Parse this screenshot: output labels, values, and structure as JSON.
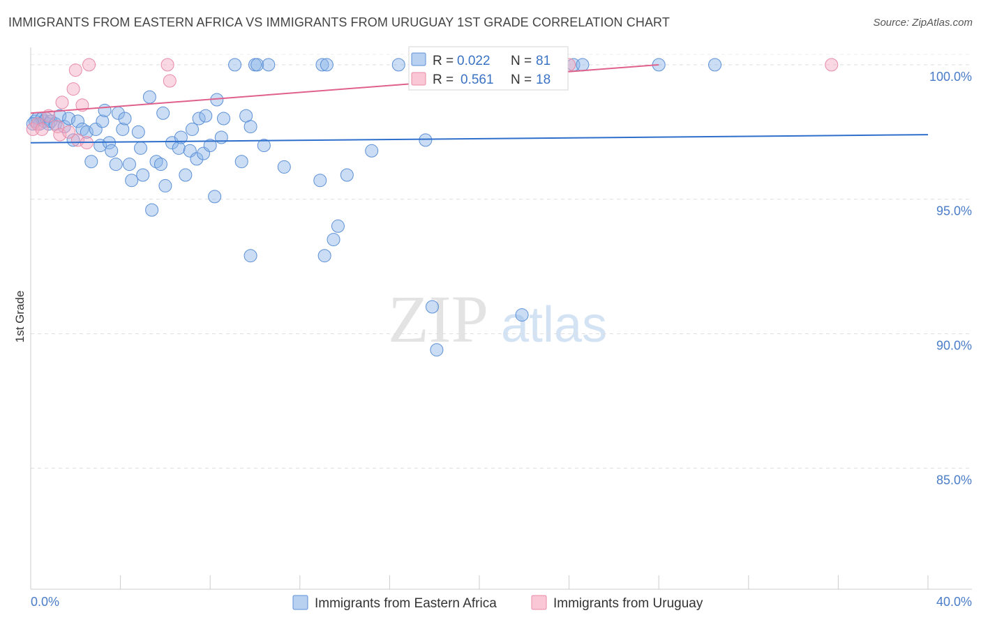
{
  "header": {
    "title": "IMMIGRANTS FROM EASTERN AFRICA VS IMMIGRANTS FROM URUGUAY 1ST GRADE CORRELATION CHART",
    "source": "Source: ZipAtlas.com"
  },
  "watermark": {
    "zip": "ZIP",
    "atlas": "atlas"
  },
  "chart_data": {
    "type": "scatter",
    "ylabel": "1st Grade",
    "xlim": [
      0,
      40
    ],
    "ylim": [
      80.5,
      100.8
    ],
    "x_tick_labels": [
      "0.0%",
      "40.0%"
    ],
    "y_ticks": [
      {
        "value": 100,
        "label": "100.0%"
      },
      {
        "value": 95,
        "label": "95.0%"
      },
      {
        "value": 90,
        "label": "90.0%"
      },
      {
        "value": 85,
        "label": "85.0%"
      }
    ],
    "grid": "horizontal-dashed",
    "legend_top": [
      {
        "r_label": "R =",
        "r_value": "0.022",
        "n_label": "N =",
        "n_value": "81",
        "color": "#8ab4e8"
      },
      {
        "r_label": "R =",
        "r_value": "0.561",
        "n_label": "N =",
        "n_value": "18",
        "color": "#f4a9c0"
      }
    ],
    "series": [
      {
        "name": "Immigrants from Eastern Africa",
        "color": "#8ab4e8",
        "stroke": "#5b8fd6",
        "trend": {
          "x": [
            0,
            40
          ],
          "y": [
            97.1,
            97.4
          ],
          "color": "#2f6fcc"
        },
        "points": [
          [
            0.2,
            97.9
          ],
          [
            0.3,
            98.0
          ],
          [
            0.4,
            97.8
          ],
          [
            0.5,
            98.0
          ],
          [
            0.6,
            97.9
          ],
          [
            0.7,
            98.0
          ],
          [
            0.8,
            97.8
          ],
          [
            0.9,
            97.9
          ],
          [
            1.1,
            97.8
          ],
          [
            1.3,
            98.1
          ],
          [
            1.5,
            97.7
          ],
          [
            1.7,
            98.0
          ],
          [
            1.9,
            97.2
          ],
          [
            2.1,
            97.9
          ],
          [
            2.3,
            97.6
          ],
          [
            2.5,
            97.5
          ],
          [
            2.7,
            96.4
          ],
          [
            2.9,
            97.6
          ],
          [
            3.1,
            97.0
          ],
          [
            3.2,
            97.9
          ],
          [
            3.3,
            98.3
          ],
          [
            3.5,
            97.1
          ],
          [
            3.6,
            96.8
          ],
          [
            3.8,
            96.3
          ],
          [
            3.9,
            98.2
          ],
          [
            4.1,
            97.6
          ],
          [
            4.2,
            98.0
          ],
          [
            4.4,
            96.3
          ],
          [
            4.5,
            95.7
          ],
          [
            4.8,
            97.5
          ],
          [
            4.9,
            96.9
          ],
          [
            5.0,
            95.9
          ],
          [
            5.3,
            98.8
          ],
          [
            5.4,
            94.6
          ],
          [
            5.6,
            96.4
          ],
          [
            5.8,
            96.3
          ],
          [
            5.9,
            98.2
          ],
          [
            6.0,
            95.5
          ],
          [
            6.3,
            97.1
          ],
          [
            6.6,
            96.9
          ],
          [
            6.7,
            97.3
          ],
          [
            6.9,
            95.9
          ],
          [
            7.1,
            96.8
          ],
          [
            7.2,
            97.6
          ],
          [
            7.4,
            96.5
          ],
          [
            7.5,
            98.0
          ],
          [
            7.7,
            96.7
          ],
          [
            7.8,
            98.1
          ],
          [
            8.0,
            97.0
          ],
          [
            8.2,
            95.1
          ],
          [
            8.3,
            98.7
          ],
          [
            8.5,
            97.3
          ],
          [
            8.6,
            98.0
          ],
          [
            9.1,
            100.0
          ],
          [
            9.4,
            96.4
          ],
          [
            9.6,
            98.1
          ],
          [
            9.8,
            97.7
          ],
          [
            9.8,
            92.9
          ],
          [
            10.0,
            100.0
          ],
          [
            10.1,
            100.0
          ],
          [
            10.4,
            97.0
          ],
          [
            10.6,
            100.0
          ],
          [
            11.3,
            96.2
          ],
          [
            12.9,
            95.7
          ],
          [
            13.0,
            100.0
          ],
          [
            13.2,
            100.0
          ],
          [
            13.1,
            92.9
          ],
          [
            13.5,
            93.5
          ],
          [
            13.7,
            94.0
          ],
          [
            14.1,
            95.9
          ],
          [
            15.2,
            96.8
          ],
          [
            16.4,
            100.0
          ],
          [
            17.6,
            97.2
          ],
          [
            17.9,
            91.0
          ],
          [
            18.1,
            89.4
          ],
          [
            21.9,
            90.7
          ],
          [
            24.2,
            100.0
          ],
          [
            24.6,
            100.0
          ],
          [
            28.0,
            100.0
          ],
          [
            30.5,
            100.0
          ],
          [
            0.1,
            97.8
          ]
        ]
      },
      {
        "name": "Immigrants from Uruguay",
        "color": "#f4a9c0",
        "stroke": "#e88aa6",
        "trend": {
          "x": [
            0,
            28
          ],
          "y": [
            98.2,
            100.0
          ],
          "color": "#e0608c"
        },
        "points": [
          [
            0.1,
            97.6
          ],
          [
            0.3,
            97.8
          ],
          [
            0.5,
            97.6
          ],
          [
            0.8,
            98.1
          ],
          [
            1.2,
            97.7
          ],
          [
            1.3,
            97.4
          ],
          [
            1.4,
            98.6
          ],
          [
            1.7,
            97.5
          ],
          [
            1.9,
            99.1
          ],
          [
            2.0,
            99.8
          ],
          [
            2.1,
            97.2
          ],
          [
            2.3,
            98.5
          ],
          [
            2.5,
            97.1
          ],
          [
            2.6,
            100.0
          ],
          [
            6.1,
            100.0
          ],
          [
            6.2,
            99.4
          ],
          [
            24.0,
            100.0
          ],
          [
            35.7,
            100.0
          ]
        ]
      }
    ]
  }
}
